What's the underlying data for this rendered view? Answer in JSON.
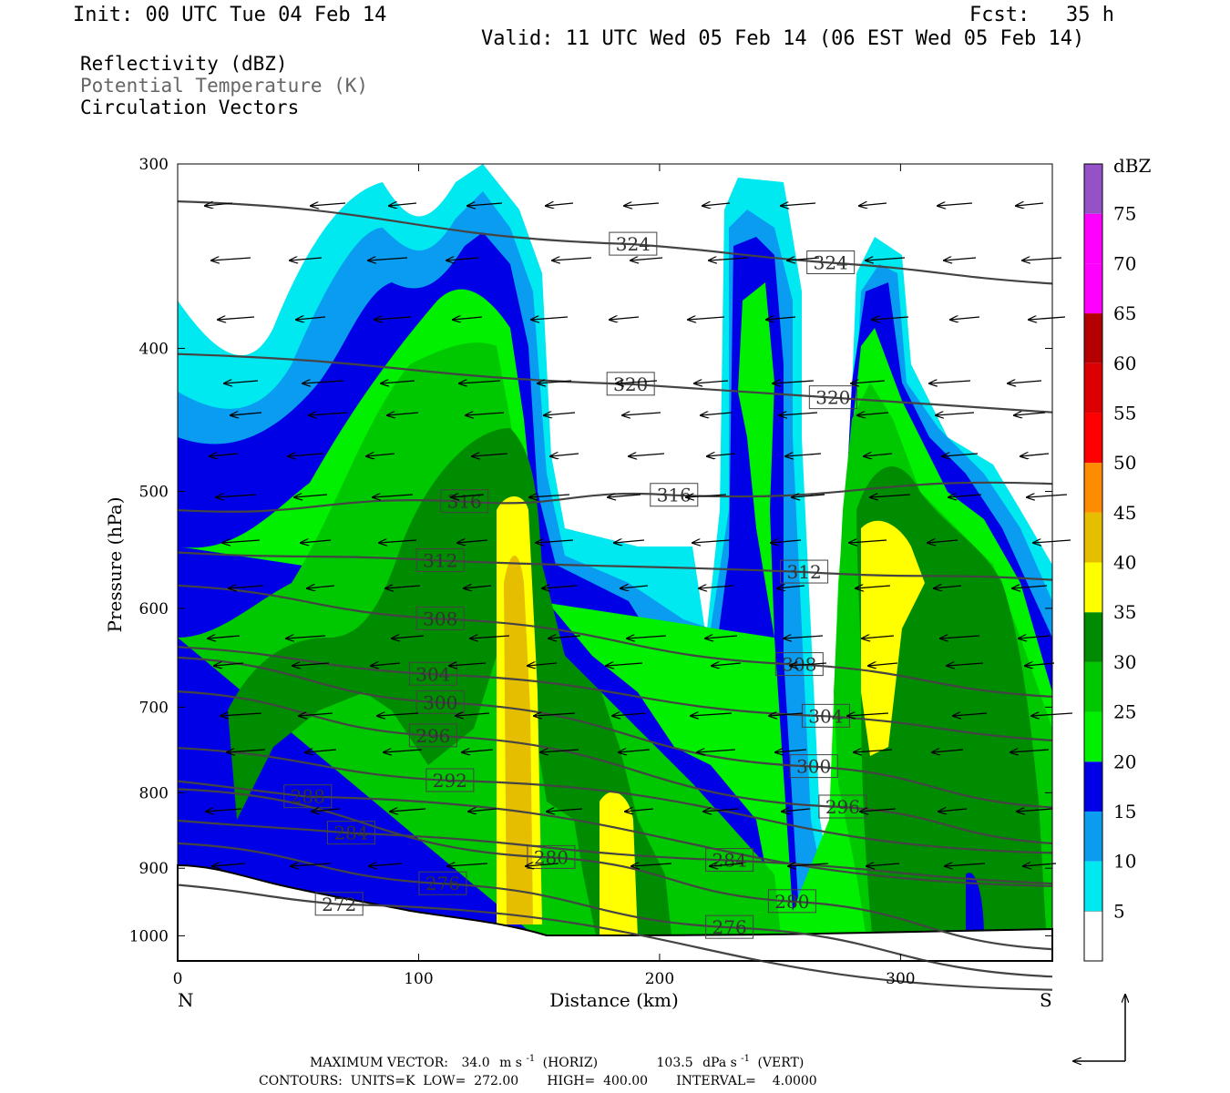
{
  "header": {
    "init": "Init: 00 UTC Tue 04 Feb 14",
    "fcst": "Fcst:   35 h",
    "valid": "Valid: 11 UTC Wed 05 Feb 14 (06 EST Wed 05 Feb 14)"
  },
  "legend_text": {
    "line1": "Reflectivity (dBZ)",
    "line2": "Potential Temperature (K)",
    "line3": "Circulation Vectors"
  },
  "footer": {
    "max_vector_label": "MAXIMUM VECTOR:",
    "horiz_value": "34.0",
    "horiz_unit_pre": "m s",
    "horiz_unit_exp": "-1",
    "horiz_tag": "(HORIZ)",
    "vert_value": "103.5",
    "vert_unit_pre": "dPa s",
    "vert_unit_exp": "-1",
    "vert_tag": "(VERT)",
    "contours": "CONTOURS:  UNITS=K  LOW=  272.00       HIGH=  400.00       INTERVAL=    4.0000"
  },
  "colors": {
    "c5": "#00e8f0",
    "c10": "#0a9cf0",
    "c15": "#0000e6",
    "c20": "#00f000",
    "c25": "#00c800",
    "c30": "#008c00",
    "c35": "#ffff00",
    "c40": "#e6be00",
    "c45": "#ff8c00",
    "c50": "#ff0000",
    "c55": "#dc0000",
    "c60": "#b40000",
    "c65": "#ff00ff",
    "c70": "#ff00ff",
    "c75": "#9650c8",
    "theta_line": "#444444"
  },
  "chart_data": {
    "type": "heatmap",
    "xlabel": "Distance (km)",
    "ylabel": "Pressure (hPa)",
    "xlim": [
      0,
      363
    ],
    "ylim": [
      1040,
      300
    ],
    "y_log": true,
    "x_ticks": [
      0,
      100,
      200,
      300
    ],
    "y_ticks": [
      300,
      400,
      500,
      600,
      700,
      800,
      900,
      1000
    ],
    "x_end_labels": {
      "left": "N",
      "right": "S"
    },
    "colorbar": {
      "label": "dBZ",
      "levels": [
        5,
        10,
        15,
        20,
        25,
        30,
        35,
        40,
        45,
        50,
        55,
        60,
        65,
        70,
        75
      ]
    },
    "theta_contour_labels": [
      {
        "label": "324",
        "x": 189,
        "p": 340
      },
      {
        "label": "324",
        "x": 271,
        "p": 350
      },
      {
        "label": "320",
        "x": 188,
        "p": 423
      },
      {
        "label": "320",
        "x": 272,
        "p": 432
      },
      {
        "label": "316",
        "x": 119,
        "p": 508
      },
      {
        "label": "316",
        "x": 206,
        "p": 503
      },
      {
        "label": "312",
        "x": 109,
        "p": 557
      },
      {
        "label": "312",
        "x": 260,
        "p": 567
      },
      {
        "label": "308",
        "x": 109,
        "p": 610
      },
      {
        "label": "308",
        "x": 258,
        "p": 655
      },
      {
        "label": "304",
        "x": 106,
        "p": 665
      },
      {
        "label": "304",
        "x": 269,
        "p": 710
      },
      {
        "label": "300",
        "x": 109,
        "p": 695
      },
      {
        "label": "300",
        "x": 264,
        "p": 768
      },
      {
        "label": "296",
        "x": 106,
        "p": 732
      },
      {
        "label": "296",
        "x": 276,
        "p": 818
      },
      {
        "label": "292",
        "x": 113,
        "p": 785
      },
      {
        "label": "288",
        "x": 54,
        "p": 805
      },
      {
        "label": "284",
        "x": 72,
        "p": 852
      },
      {
        "label": "284",
        "x": 229,
        "p": 889
      },
      {
        "label": "280",
        "x": 155,
        "p": 885
      },
      {
        "label": "280",
        "x": 255,
        "p": 948
      },
      {
        "label": "276",
        "x": 110,
        "p": 922
      },
      {
        "label": "276",
        "x": 229,
        "p": 987
      },
      {
        "label": "272",
        "x": 67,
        "p": 952
      }
    ]
  }
}
